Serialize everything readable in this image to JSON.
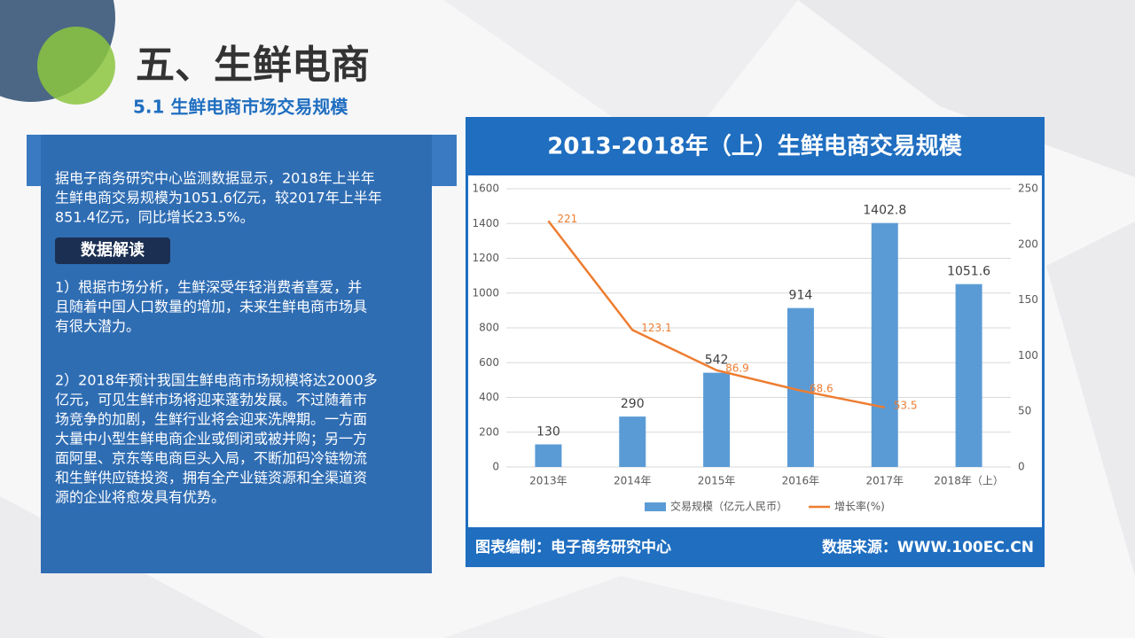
{
  "slide": {
    "title": "五、生鲜电商",
    "subtitle": "5.1 生鲜电商市场交易规模",
    "intro_lines": [
      "据电子商务研究中心监测数据显示，2018年上半年",
      "生鲜电商交易规模为1051.6亿元，较2017年上半年",
      "851.4亿元，同比增长23.5%。"
    ],
    "badge": "数据解读",
    "point1_lines": [
      "1）根据市场分析，生鲜深受年轻消费者喜爱，并",
      "且随着中国人口数量的增加，未来生鲜电商市场具",
      "有很大潜力。"
    ],
    "point2_lines": [
      "2）2018年预计我国生鲜电商市场规模将达2000多",
      "亿元，可见生鲜市场将迎来蓬勃发展。不过随着市",
      "场竞争的加剧，生鲜行业将会迎来洗牌期。一方面",
      "大量中小型生鲜电商企业或倒闭或被并购；另一方",
      "面阿里、京东等电商巨头入局，不断加码冷链物流",
      "和生鲜供应链投资，拥有全产业链资源和全渠道资",
      "源的企业将愈发具有优势。"
    ],
    "footer_left": "图表编制：电子商务研究中心",
    "footer_right": "数据来源：WWW.100EC.CN"
  },
  "chart_data": {
    "type": "bar",
    "title": "2013-2018年（上）生鲜电商交易规模",
    "categories": [
      "2013年",
      "2014年",
      "2015年",
      "2016年",
      "2017年",
      "2018年（上）"
    ],
    "series": [
      {
        "name": "交易规模（亿元人民币）",
        "color": "#5b9bd5",
        "type": "bar",
        "values": [
          130,
          290,
          542,
          914,
          1402.8,
          1051.6
        ]
      },
      {
        "name": "增长率(%)",
        "color": "#ed7d31",
        "type": "line",
        "axis": "y2",
        "values": [
          221,
          123.1,
          86.9,
          68.6,
          53.5,
          null
        ]
      }
    ],
    "ylim": [
      0,
      1600
    ],
    "yticks": [
      0,
      200,
      400,
      600,
      800,
      1000,
      1200,
      1400,
      1600
    ],
    "y2lim": [
      0,
      250
    ],
    "y2ticks": [
      0,
      50,
      100,
      150,
      200,
      250
    ],
    "grid": true,
    "legend": "bottom"
  }
}
